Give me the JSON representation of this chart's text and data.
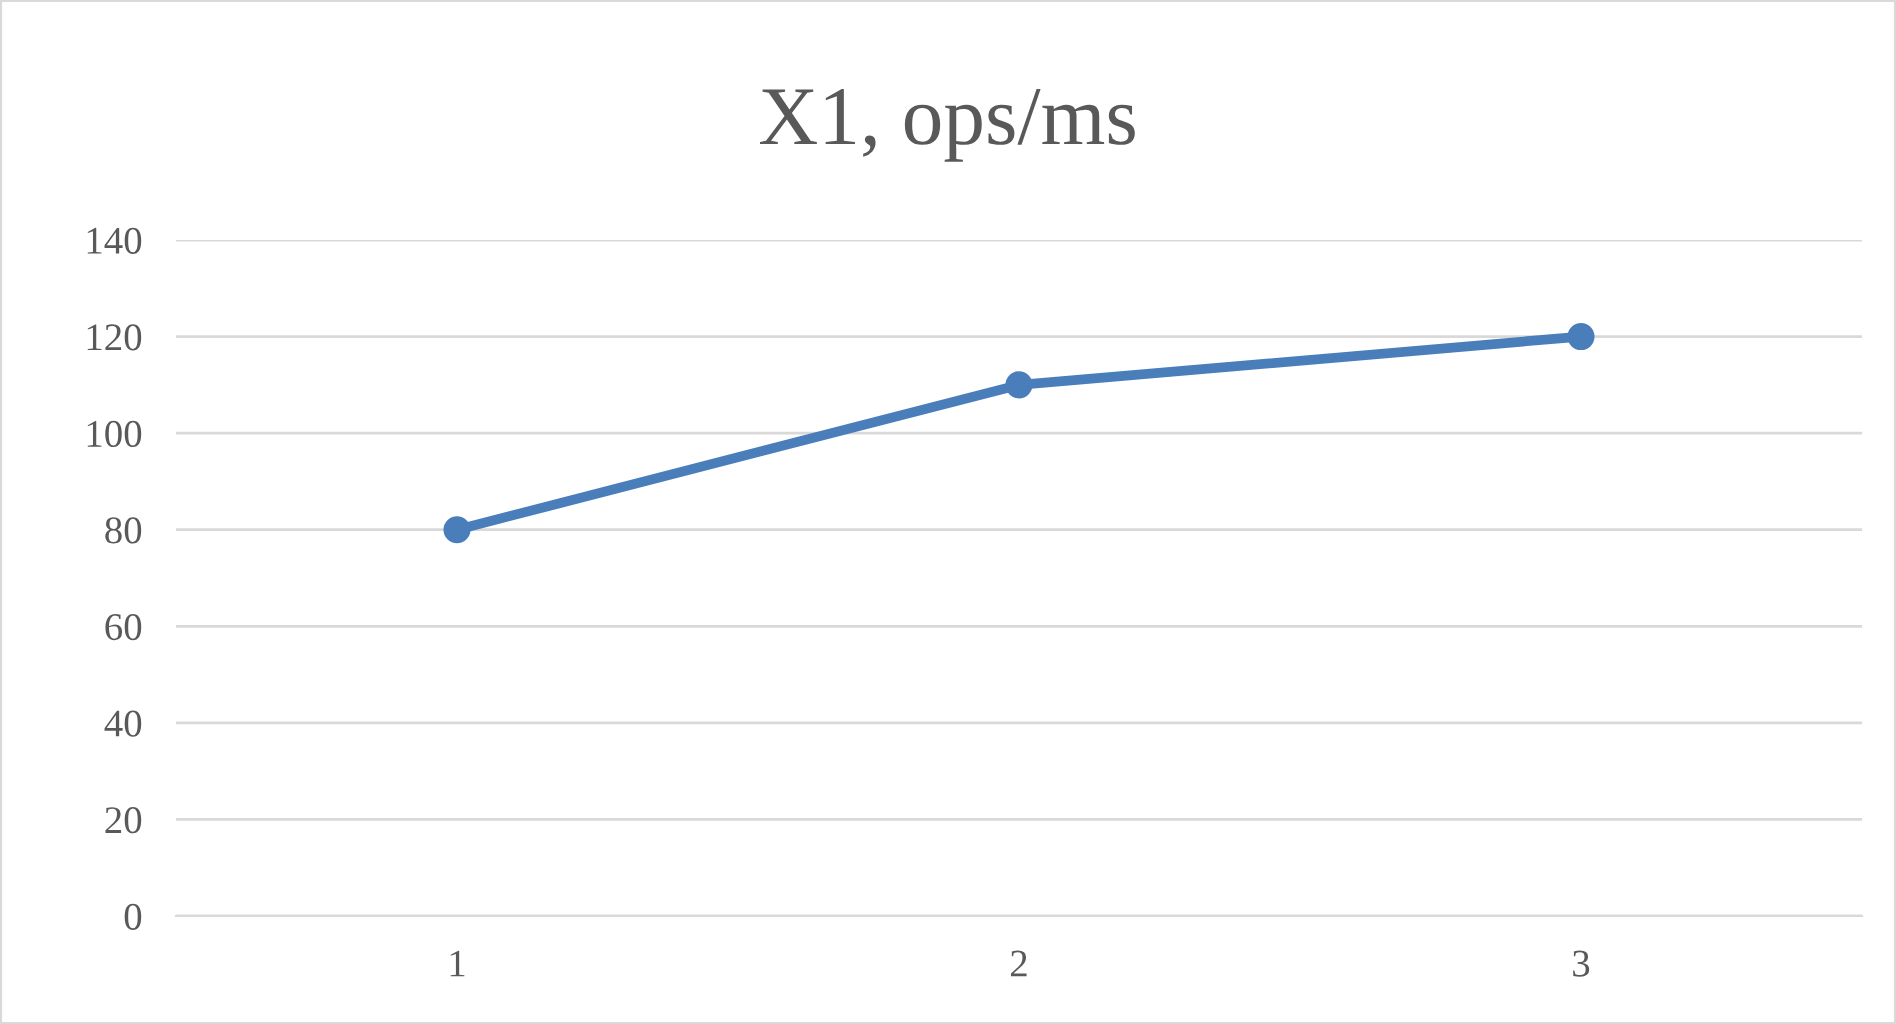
{
  "chart_data": {
    "type": "line",
    "title": "X1, ops/ms",
    "categories": [
      "1",
      "2",
      "3"
    ],
    "series": [
      {
        "color": "#4a7ebb",
        "values": [
          80,
          110,
          120
        ]
      }
    ],
    "ylim": [
      0,
      140
    ],
    "yticks": [
      0,
      20,
      40,
      60,
      80,
      100,
      120,
      140
    ],
    "grid": "y",
    "marker": "circle",
    "line_style": "solid",
    "legend": false
  }
}
